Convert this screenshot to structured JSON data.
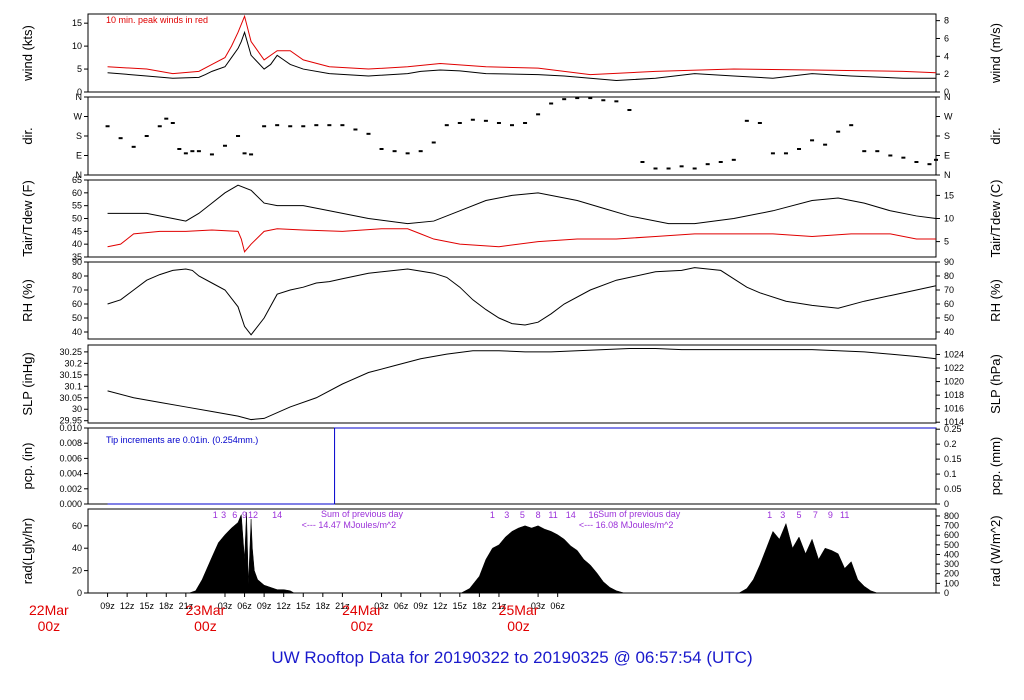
{
  "title": "UW Rooftop Data for 20190322  to  20190325 @ 06:57:54  (UTC)",
  "chart_data": [
    {
      "type": "line",
      "id": "wind",
      "ylabel": "wind (kts)",
      "ylabel_right": "wind (m/s)",
      "ylim": [
        0,
        17
      ],
      "yticks": [
        0,
        5,
        10,
        15
      ],
      "yticks_right": [
        0,
        2,
        4,
        6,
        8
      ],
      "right_factor": 1.944,
      "annotation": "10 min. peak winds in red",
      "series": [
        {
          "color": "#000000",
          "x": [
            0,
            6,
            10,
            14,
            15,
            16,
            18,
            19,
            20,
            20.5,
            21,
            22,
            24,
            25,
            26,
            27,
            28,
            30,
            34,
            40,
            46,
            48,
            51,
            54,
            58,
            66,
            70,
            74,
            78,
            84,
            90,
            96,
            102,
            108,
            114,
            122,
            127
          ],
          "y": [
            4.2,
            3.5,
            3.0,
            3.2,
            3.8,
            4.5,
            5.5,
            7.5,
            9.5,
            11,
            13,
            8,
            5,
            6,
            8,
            7,
            6,
            5,
            4,
            3.5,
            4,
            4.5,
            4.8,
            4.6,
            4.0,
            3.8,
            3.5,
            3.0,
            2.5,
            3.0,
            4.0,
            3.5,
            3.0,
            4.0,
            3.5,
            3.0,
            3.0
          ]
        },
        {
          "color": "#e00000",
          "x": [
            0,
            6,
            10,
            14,
            16,
            18,
            19,
            20,
            21,
            22,
            24,
            26,
            28,
            30,
            34,
            40,
            46,
            51,
            58,
            66,
            74,
            84,
            96,
            108,
            122,
            127
          ],
          "y": [
            5.5,
            5.0,
            4.0,
            4.5,
            6.0,
            7.5,
            10,
            13,
            16.5,
            11,
            7,
            9,
            9,
            7,
            5.5,
            5,
            5.5,
            6.2,
            5.5,
            5.2,
            3.8,
            4.5,
            5.0,
            4.8,
            4.5,
            4.2
          ]
        }
      ]
    },
    {
      "type": "scatter",
      "id": "dir",
      "ylabel": "dir.",
      "ylabel_right": "dir.",
      "yticks_labels": [
        "N",
        "E",
        "S",
        "W",
        "N"
      ],
      "ylim": [
        0,
        360
      ],
      "series": [
        {
          "color": "#000000",
          "x": [
            0,
            2,
            4,
            6,
            8,
            9,
            10,
            11,
            12,
            13,
            14,
            16,
            18,
            20,
            21,
            22,
            24,
            26,
            28,
            30,
            32,
            34,
            36,
            38,
            40,
            42,
            44,
            46,
            48,
            50,
            52,
            54,
            56,
            58,
            60,
            62,
            64,
            66,
            68,
            70,
            72,
            74,
            76,
            78,
            80,
            82,
            84,
            86,
            88,
            90,
            92,
            94,
            96,
            98,
            100,
            102,
            104,
            106,
            108,
            110,
            112,
            114,
            116,
            118,
            120,
            122,
            124,
            126,
            127
          ],
          "y": [
            225,
            170,
            130,
            180,
            225,
            260,
            240,
            120,
            100,
            110,
            110,
            95,
            135,
            180,
            100,
            95,
            225,
            230,
            225,
            225,
            230,
            230,
            230,
            210,
            190,
            120,
            110,
            100,
            110,
            150,
            230,
            240,
            255,
            250,
            240,
            230,
            240,
            280,
            330,
            350,
            355,
            355,
            345,
            340,
            300,
            60,
            30,
            30,
            40,
            30,
            50,
            60,
            70,
            250,
            240,
            100,
            100,
            120,
            160,
            140,
            200,
            230,
            110,
            110,
            90,
            80,
            60,
            50,
            70
          ]
        }
      ]
    },
    {
      "type": "line",
      "id": "temp",
      "ylabel": "Tair/Tdew (F)",
      "ylabel_right": "Tair/Tdew (C)",
      "ylim": [
        35,
        65
      ],
      "yticks": [
        35,
        40,
        45,
        50,
        55,
        60,
        65
      ],
      "yticks_right": [
        5,
        10,
        15
      ],
      "series": [
        {
          "name": "Tair",
          "color": "#000000",
          "x": [
            0,
            6,
            10,
            12,
            14,
            16,
            18,
            20,
            22,
            24,
            26,
            30,
            34,
            40,
            46,
            50,
            54,
            58,
            62,
            66,
            72,
            76,
            80,
            86,
            90,
            96,
            102,
            108,
            112,
            116,
            120,
            124,
            127
          ],
          "y": [
            52,
            52,
            50,
            49,
            52,
            56,
            60,
            63,
            61,
            56,
            55,
            55,
            53,
            50,
            48,
            49,
            53,
            57,
            59,
            60,
            57,
            54,
            51,
            48,
            48,
            50,
            53,
            57,
            58,
            56,
            53,
            51,
            50
          ]
        },
        {
          "name": "Tdew",
          "color": "#e00000",
          "x": [
            0,
            2,
            4,
            8,
            12,
            16,
            20,
            20.5,
            21,
            22,
            24,
            26,
            30,
            36,
            42,
            46,
            48,
            50,
            54,
            60,
            66,
            72,
            78,
            84,
            90,
            96,
            102,
            108,
            114,
            120,
            124,
            127
          ],
          "y": [
            39,
            40,
            44,
            45,
            45,
            45.5,
            45,
            42,
            37,
            40,
            45,
            46,
            45.5,
            45,
            46,
            46,
            44,
            42,
            40,
            39,
            41,
            42,
            42,
            43,
            44,
            44,
            44,
            43,
            44,
            44,
            42,
            42
          ]
        }
      ]
    },
    {
      "type": "line",
      "id": "rh",
      "ylabel": "RH (%)",
      "ylabel_right": "RH (%)",
      "ylim": [
        35,
        90
      ],
      "yticks": [
        40,
        50,
        60,
        70,
        80,
        90
      ],
      "series": [
        {
          "color": "#000000",
          "x": [
            0,
            2,
            4,
            6,
            8,
            10,
            12,
            13,
            14,
            16,
            18,
            20,
            21,
            22,
            24,
            26,
            28,
            30,
            32,
            34,
            36,
            40,
            46,
            50,
            52,
            54,
            56,
            58,
            60,
            62,
            64,
            66,
            68,
            70,
            74,
            78,
            84,
            88,
            90,
            94,
            96,
            98,
            100,
            104,
            108,
            112,
            116,
            120,
            124,
            127
          ],
          "y": [
            60,
            63,
            70,
            77,
            81,
            84,
            85,
            84,
            80,
            75,
            70,
            58,
            44,
            38,
            50,
            67,
            70,
            72,
            75,
            76,
            78,
            82,
            85,
            82,
            79,
            72,
            63,
            56,
            50,
            46,
            45,
            47,
            53,
            60,
            70,
            77,
            83,
            84,
            86,
            84,
            78,
            72,
            68,
            62,
            59,
            57,
            62,
            66,
            70,
            73
          ]
        }
      ]
    },
    {
      "type": "line",
      "id": "slp",
      "ylabel": "SLP (inHg)",
      "ylabel_right": "SLP (hPa)",
      "ylim": [
        29.94,
        30.28
      ],
      "yticks": [
        29.95,
        30.0,
        30.05,
        30.1,
        30.15,
        30.2,
        30.25
      ],
      "yticks_right": [
        1014,
        1016,
        1018,
        1020,
        1022,
        1024
      ],
      "series": [
        {
          "color": "#000000",
          "x": [
            0,
            4,
            8,
            12,
            16,
            20,
            22,
            24,
            28,
            32,
            36,
            40,
            44,
            48,
            52,
            56,
            60,
            64,
            68,
            72,
            76,
            80,
            84,
            88,
            92,
            96,
            100,
            104,
            108,
            112,
            116,
            120,
            124,
            127
          ],
          "y": [
            30.08,
            30.05,
            30.03,
            30.01,
            29.99,
            29.97,
            29.955,
            29.96,
            30.01,
            30.05,
            30.11,
            30.16,
            30.19,
            30.22,
            30.24,
            30.255,
            30.255,
            30.25,
            30.25,
            30.255,
            30.26,
            30.265,
            30.265,
            30.26,
            30.26,
            30.26,
            30.26,
            30.26,
            30.26,
            30.255,
            30.25,
            30.24,
            30.23,
            30.22
          ]
        }
      ]
    },
    {
      "type": "line",
      "id": "pcp",
      "ylabel": "pcp. (in)",
      "ylabel_right": "pcp. (mm)",
      "ylim": [
        0,
        0.01
      ],
      "yticks": [
        0,
        0.002,
        0.004,
        0.006,
        0.008,
        0.01
      ],
      "yticks_labels": [
        "0.000",
        "0.002",
        "0.004",
        "0.006",
        "0.008",
        "0.010"
      ],
      "yticks_right": [
        0,
        0.05,
        0.1,
        0.15,
        0.2,
        0.25
      ],
      "annotation": "Tip increments are 0.01in. (0.254mm.)",
      "series": [
        {
          "color": "#0000cc",
          "x": [
            0,
            34.8,
            34.8,
            127
          ],
          "y": [
            0,
            0,
            0.01,
            0.01
          ]
        }
      ]
    },
    {
      "type": "area",
      "id": "rad",
      "ylabel": "rad(Lgly/hr)",
      "ylabel_right": "rad (W/m^2)",
      "ylim": [
        0,
        75
      ],
      "yticks": [
        0,
        20,
        40,
        60
      ],
      "yticks_right": [
        0,
        100,
        200,
        300,
        400,
        500,
        600,
        700,
        800
      ],
      "right_factor": 11.63,
      "hour_labels": [
        {
          "x": 16.5,
          "text": "1"
        },
        {
          "x": 17.8,
          "text": "3"
        },
        {
          "x": 19.5,
          "text": "6"
        },
        {
          "x": 21,
          "text": "9"
        },
        {
          "x": 22.3,
          "text": "12"
        },
        {
          "x": 26,
          "text": "14"
        },
        {
          "x": 59,
          "text": "1"
        },
        {
          "x": 61.2,
          "text": "3"
        },
        {
          "x": 63.6,
          "text": "5"
        },
        {
          "x": 66,
          "text": "8"
        },
        {
          "x": 68.3,
          "text": "11"
        },
        {
          "x": 71,
          "text": "14"
        },
        {
          "x": 74.5,
          "text": "16"
        },
        {
          "x": 101.5,
          "text": "1"
        },
        {
          "x": 103.5,
          "text": "3"
        },
        {
          "x": 106,
          "text": "5"
        },
        {
          "x": 108.5,
          "text": "7"
        },
        {
          "x": 110.8,
          "text": "9"
        },
        {
          "x": 113,
          "text": "11"
        }
      ],
      "annotations": [
        {
          "x": 39,
          "text": "Sum of previous day"
        },
        {
          "x": 37,
          "text": "<--- 14.47 MJoules/m^2"
        },
        {
          "x": 81.5,
          "text": "Sum of previous day"
        },
        {
          "x": 79.5,
          "text": "<--- 16.08 MJoules/m^2"
        }
      ],
      "series": [
        {
          "color": "#000000",
          "x": [
            12.5,
            13.5,
            14.5,
            16,
            17,
            18,
            19,
            20,
            20.5,
            21,
            21.3,
            21.6,
            22,
            22.2,
            22.5,
            23,
            24,
            25,
            26,
            27,
            28,
            28.6,
            54.2,
            55.5,
            57,
            58,
            59,
            60,
            61,
            62,
            63,
            64,
            65,
            66,
            67,
            68,
            69,
            70,
            71,
            72,
            73,
            74,
            75,
            76,
            77,
            78,
            79.2,
            96.8,
            98,
            99,
            100,
            101,
            102,
            103,
            104,
            105,
            106,
            107,
            108,
            109,
            110,
            111,
            112,
            113,
            114,
            115,
            116,
            117,
            118
          ],
          "y": [
            0,
            2,
            12,
            32,
            45,
            52,
            58,
            63,
            70,
            30,
            72,
            8,
            66,
            40,
            20,
            12,
            7,
            5,
            3,
            3,
            2,
            0,
            0,
            4,
            15,
            30,
            40,
            43,
            50,
            55,
            58,
            60,
            58,
            60,
            57,
            55,
            52,
            48,
            42,
            38,
            30,
            25,
            18,
            10,
            5,
            2,
            0,
            0,
            4,
            12,
            25,
            40,
            55,
            48,
            62,
            40,
            50,
            35,
            48,
            30,
            40,
            38,
            35,
            22,
            28,
            12,
            6,
            2,
            0
          ]
        }
      ]
    }
  ],
  "x_axis": {
    "xlim": [
      -3,
      127
    ],
    "ticks": [
      {
        "x": 0,
        "label": "09z"
      },
      {
        "x": 3,
        "label": "12z"
      },
      {
        "x": 6,
        "label": "15z"
      },
      {
        "x": 9,
        "label": "18z"
      },
      {
        "x": 12,
        "label": "21z"
      },
      {
        "x": 18,
        "label": "03z"
      },
      {
        "x": 21,
        "label": "06z"
      },
      {
        "x": 24,
        "label": "09z"
      },
      {
        "x": 27,
        "label": "12z"
      },
      {
        "x": 30,
        "label": "15z"
      },
      {
        "x": 33,
        "label": "18z"
      },
      {
        "x": 36,
        "label": "21z"
      },
      {
        "x": 42,
        "label": "03z"
      },
      {
        "x": 45,
        "label": "06z"
      },
      {
        "x": 48,
        "label": "09z"
      },
      {
        "x": 51,
        "label": "12z"
      },
      {
        "x": 54,
        "label": "15z"
      },
      {
        "x": 57,
        "label": "18z"
      },
      {
        "x": 60,
        "label": "21z"
      },
      {
        "x": 66,
        "label": "03z"
      },
      {
        "x": 69,
        "label": "06z"
      }
    ],
    "day_labels": [
      {
        "x": -9,
        "date": "22Mar",
        "hour": "00z"
      },
      {
        "x": 15,
        "date": "23Mar",
        "hour": "00z"
      },
      {
        "x": 39,
        "date": "24Mar",
        "hour": "00z"
      },
      {
        "x": 63,
        "date": "25Mar",
        "hour": "00z"
      }
    ]
  }
}
